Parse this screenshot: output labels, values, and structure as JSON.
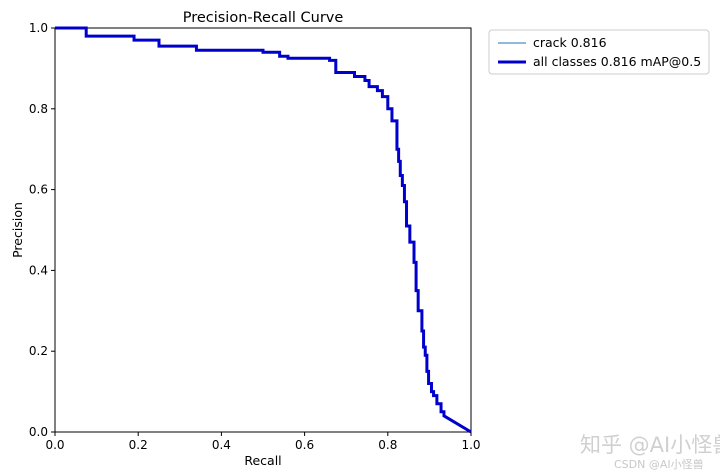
{
  "chart_data": {
    "type": "line",
    "title": "Precision-Recall Curve",
    "xlabel": "Recall",
    "ylabel": "Precision",
    "xlim": [
      0,
      1
    ],
    "ylim": [
      0,
      1
    ],
    "xticks": [
      "0.0",
      "0.2",
      "0.4",
      "0.6",
      "0.8",
      "1.0"
    ],
    "yticks": [
      "0.0",
      "0.2",
      "0.4",
      "0.6",
      "0.8",
      "1.0"
    ],
    "grid": false,
    "legend_position": "outside-top-right",
    "series": [
      {
        "name": "crack 0.816",
        "color": "#1f77b4",
        "style": "thin",
        "x": [
          0,
          0.075,
          0.075,
          0.19,
          0.19,
          0.25,
          0.25,
          0.34,
          0.34,
          0.5,
          0.5,
          0.54,
          0.54,
          0.56,
          0.56,
          0.66,
          0.66,
          0.675,
          0.675,
          0.72,
          0.72,
          0.745,
          0.745,
          0.755,
          0.755,
          0.775,
          0.775,
          0.787,
          0.787,
          0.8,
          0.8,
          0.81,
          0.81,
          0.822,
          0.822,
          0.826,
          0.826,
          0.83,
          0.83,
          0.835,
          0.835,
          0.84,
          0.84,
          0.845,
          0.845,
          0.853,
          0.853,
          0.863,
          0.863,
          0.868,
          0.868,
          0.873,
          0.873,
          0.882,
          0.882,
          0.886,
          0.886,
          0.89,
          0.89,
          0.894,
          0.894,
          0.898,
          0.898,
          0.905,
          0.905,
          0.91,
          0.91,
          0.918,
          0.918,
          0.928,
          0.928,
          0.935,
          0.935,
          1.0
        ],
        "y": [
          1.0,
          1.0,
          0.98,
          0.98,
          0.97,
          0.97,
          0.955,
          0.955,
          0.945,
          0.945,
          0.94,
          0.94,
          0.93,
          0.93,
          0.925,
          0.925,
          0.92,
          0.92,
          0.89,
          0.89,
          0.88,
          0.88,
          0.87,
          0.87,
          0.855,
          0.855,
          0.845,
          0.845,
          0.83,
          0.83,
          0.8,
          0.8,
          0.77,
          0.77,
          0.7,
          0.7,
          0.67,
          0.67,
          0.635,
          0.635,
          0.61,
          0.61,
          0.57,
          0.57,
          0.51,
          0.51,
          0.47,
          0.47,
          0.42,
          0.42,
          0.35,
          0.35,
          0.3,
          0.3,
          0.25,
          0.25,
          0.21,
          0.21,
          0.19,
          0.19,
          0.15,
          0.15,
          0.12,
          0.12,
          0.1,
          0.1,
          0.09,
          0.09,
          0.07,
          0.07,
          0.05,
          0.05,
          0.04,
          0.0
        ]
      },
      {
        "name": "all classes 0.816 mAP@0.5",
        "color": "#0000cc",
        "style": "thick",
        "x": [
          0,
          0.075,
          0.075,
          0.19,
          0.19,
          0.25,
          0.25,
          0.34,
          0.34,
          0.5,
          0.5,
          0.54,
          0.54,
          0.56,
          0.56,
          0.66,
          0.66,
          0.675,
          0.675,
          0.72,
          0.72,
          0.745,
          0.745,
          0.755,
          0.755,
          0.775,
          0.775,
          0.787,
          0.787,
          0.8,
          0.8,
          0.81,
          0.81,
          0.822,
          0.822,
          0.826,
          0.826,
          0.83,
          0.83,
          0.835,
          0.835,
          0.84,
          0.84,
          0.845,
          0.845,
          0.853,
          0.853,
          0.863,
          0.863,
          0.868,
          0.868,
          0.873,
          0.873,
          0.882,
          0.882,
          0.886,
          0.886,
          0.89,
          0.89,
          0.894,
          0.894,
          0.898,
          0.898,
          0.905,
          0.905,
          0.91,
          0.91,
          0.918,
          0.918,
          0.928,
          0.928,
          0.935,
          0.935,
          1.0
        ],
        "y": [
          1.0,
          1.0,
          0.98,
          0.98,
          0.97,
          0.97,
          0.955,
          0.955,
          0.945,
          0.945,
          0.94,
          0.94,
          0.93,
          0.93,
          0.925,
          0.925,
          0.92,
          0.92,
          0.89,
          0.89,
          0.88,
          0.88,
          0.87,
          0.87,
          0.855,
          0.855,
          0.845,
          0.845,
          0.83,
          0.83,
          0.8,
          0.8,
          0.77,
          0.77,
          0.7,
          0.7,
          0.67,
          0.67,
          0.635,
          0.635,
          0.61,
          0.61,
          0.57,
          0.57,
          0.51,
          0.51,
          0.47,
          0.47,
          0.42,
          0.42,
          0.35,
          0.35,
          0.3,
          0.3,
          0.25,
          0.25,
          0.21,
          0.21,
          0.19,
          0.19,
          0.15,
          0.15,
          0.12,
          0.12,
          0.1,
          0.1,
          0.09,
          0.09,
          0.07,
          0.07,
          0.05,
          0.05,
          0.04,
          0.0
        ]
      }
    ]
  },
  "watermark": {
    "main": "知乎 @AI小怪兽",
    "sub": "CSDN @AI小怪兽"
  }
}
